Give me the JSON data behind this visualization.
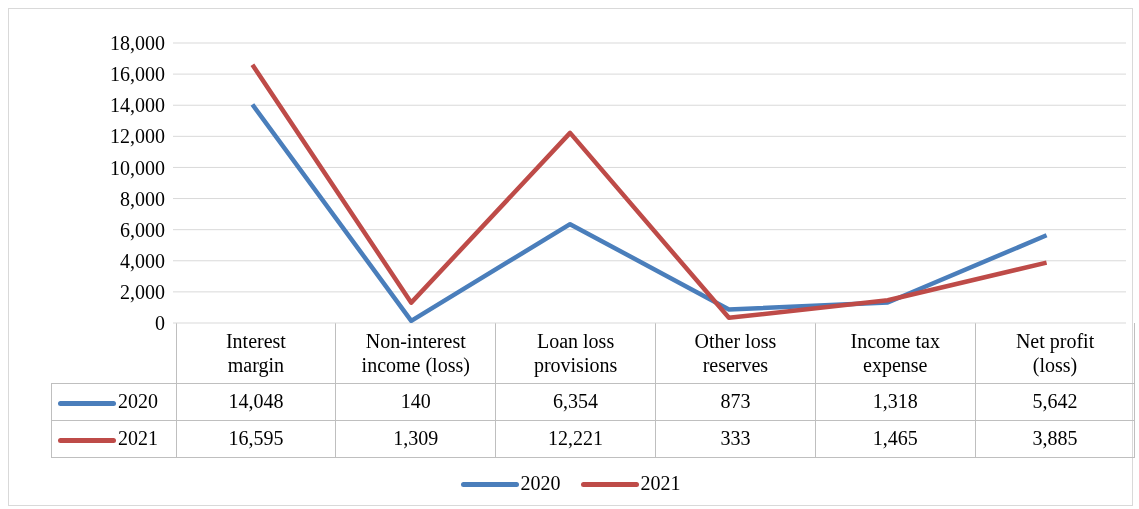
{
  "chart_data": {
    "type": "line",
    "categories": [
      "Interest margin",
      "Non-interest income (loss)",
      "Loan loss provisions",
      "Other loss reserves",
      "Income tax expense",
      "Net profit (loss)"
    ],
    "series": [
      {
        "name": "2020",
        "color": "#4a7ebb",
        "values": [
          14048,
          140,
          6354,
          873,
          1318,
          5642
        ],
        "value_labels": [
          "14,048",
          "140",
          "6,354",
          "873",
          "1,318",
          "5,642"
        ]
      },
      {
        "name": "2021",
        "color": "#be4b48",
        "values": [
          16595,
          1309,
          12221,
          333,
          1465,
          3885
        ],
        "value_labels": [
          "16,595",
          "1,309",
          "12,221",
          "333",
          "1,465",
          "3,885"
        ]
      }
    ],
    "ylim": [
      0,
      18000
    ],
    "yticks": [
      {
        "value": 0,
        "label": "0"
      },
      {
        "value": 2000,
        "label": "2,000"
      },
      {
        "value": 4000,
        "label": "4,000"
      },
      {
        "value": 6000,
        "label": "6,000"
      },
      {
        "value": 8000,
        "label": "8,000"
      },
      {
        "value": 10000,
        "label": "10,000"
      },
      {
        "value": 12000,
        "label": "12,000"
      },
      {
        "value": 14000,
        "label": "14,000"
      },
      {
        "value": 16000,
        "label": "16,000"
      },
      {
        "value": 18000,
        "label": "18,000"
      }
    ],
    "grid": "y",
    "legend": "bottom",
    "marker": "none",
    "line_style": "solid"
  }
}
